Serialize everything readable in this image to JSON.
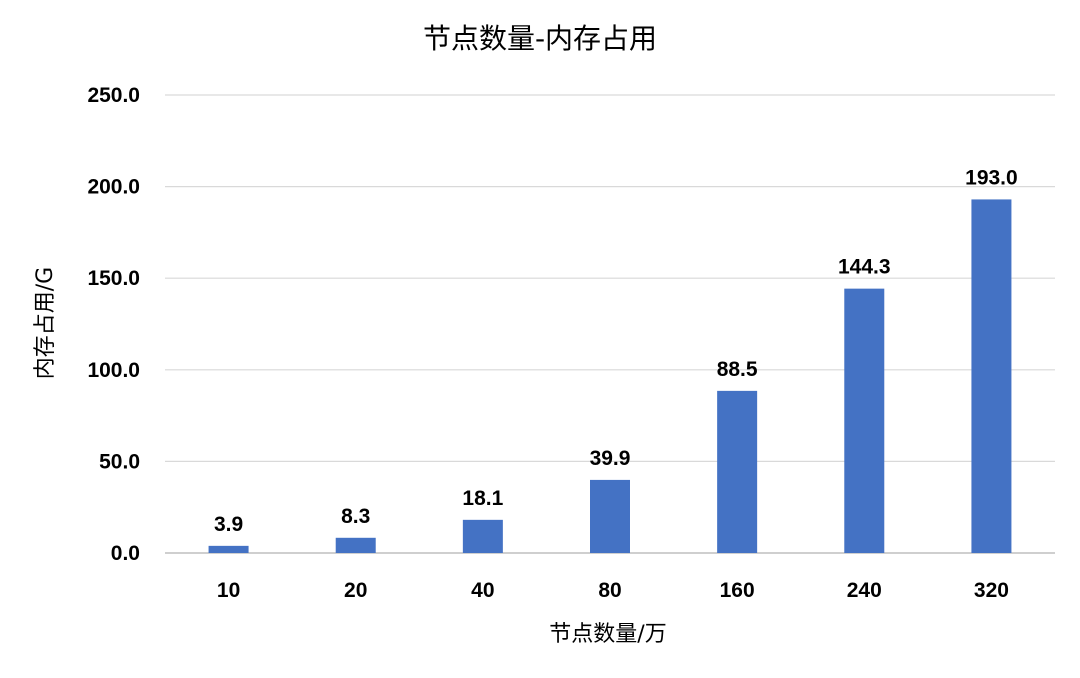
{
  "chart_data": {
    "type": "bar",
    "title": "节点数量-内存占用",
    "xlabel": "节点数量/万",
    "ylabel": "内存占用/G",
    "categories": [
      "10",
      "20",
      "40",
      "80",
      "160",
      "240",
      "320"
    ],
    "values": [
      3.9,
      8.3,
      18.1,
      39.9,
      88.5,
      144.3,
      193.0
    ],
    "value_labels": [
      "3.9",
      "8.3",
      "18.1",
      "39.9",
      "88.5",
      "144.3",
      "193.0"
    ],
    "ylim": [
      0,
      250
    ],
    "yticks": [
      "0.0",
      "50.0",
      "100.0",
      "150.0",
      "200.0",
      "250.0"
    ],
    "grid": true,
    "legend": "none",
    "bar_color": "#4472C4"
  }
}
